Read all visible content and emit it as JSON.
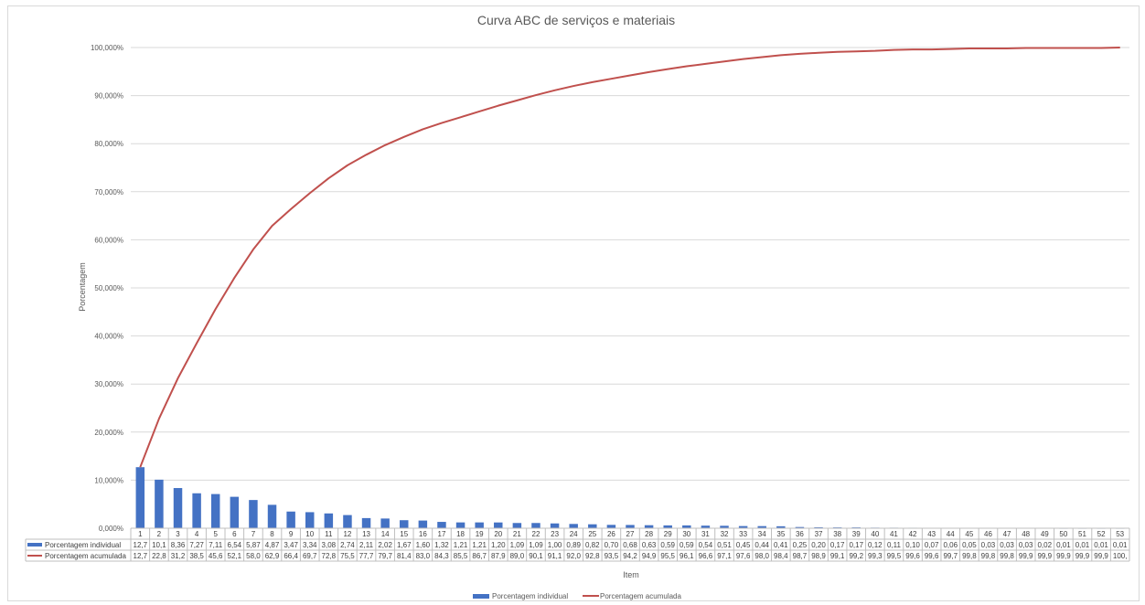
{
  "chart_data": {
    "type": "bar",
    "title": "Curva ABC de serviços e materiais",
    "xlabel": "Item",
    "ylabel": "Porcentagem",
    "ylim": [
      0,
      100
    ],
    "yticks": [
      "0,000%",
      "10,000%",
      "20,000%",
      "30,000%",
      "40,000%",
      "50,000%",
      "60,000%",
      "70,000%",
      "80,000%",
      "90,000%",
      "100,000%"
    ],
    "grid": true,
    "legend_position": "bottom",
    "categories": [
      "1",
      "2",
      "3",
      "4",
      "5",
      "6",
      "7",
      "8",
      "9",
      "10",
      "11",
      "12",
      "13",
      "14",
      "15",
      "16",
      "17",
      "18",
      "19",
      "20",
      "21",
      "22",
      "23",
      "24",
      "25",
      "26",
      "27",
      "28",
      "29",
      "30",
      "31",
      "32",
      "33",
      "34",
      "35",
      "36",
      "37",
      "38",
      "39",
      "40",
      "41",
      "42",
      "43",
      "44",
      "45",
      "46",
      "47",
      "48",
      "49",
      "50",
      "51",
      "52",
      "53"
    ],
    "series": [
      {
        "name": "Porcentagem individual",
        "type": "bar",
        "color": "#4472c4",
        "values": [
          12.7,
          10.1,
          8.36,
          7.27,
          7.11,
          6.54,
          5.87,
          4.87,
          3.47,
          3.34,
          3.08,
          2.74,
          2.11,
          2.02,
          1.67,
          1.6,
          1.32,
          1.21,
          1.21,
          1.2,
          1.09,
          1.09,
          1.0,
          0.89,
          0.82,
          0.7,
          0.68,
          0.63,
          0.59,
          0.59,
          0.54,
          0.51,
          0.45,
          0.44,
          0.41,
          0.25,
          0.2,
          0.17,
          0.17,
          0.12,
          0.11,
          0.1,
          0.07,
          0.06,
          0.05,
          0.03,
          0.03,
          0.03,
          0.02,
          0.01,
          0.01,
          0.01,
          0.01
        ],
        "table_labels": [
          "12,7",
          "10,1",
          "8,36",
          "7,27",
          "7,11",
          "6,54",
          "5,87",
          "4,87",
          "3,47",
          "3,34",
          "3,08",
          "2,74",
          "2,11",
          "2,02",
          "1,67",
          "1,60",
          "1,32",
          "1,21",
          "1,21",
          "1,20",
          "1,09",
          "1,09",
          "1,00",
          "0,89",
          "0,82",
          "0,70",
          "0,68",
          "0,63",
          "0,59",
          "0,59",
          "0,54",
          "0,51",
          "0,45",
          "0,44",
          "0,41",
          "0,25",
          "0,20",
          "0,17",
          "0,17",
          "0,12",
          "0,11",
          "0,10",
          "0,07",
          "0,06",
          "0,05",
          "0,03",
          "0,03",
          "0,03",
          "0,02",
          "0,01",
          "0,01",
          "0,01",
          "0,01"
        ]
      },
      {
        "name": "Porcentagem acumulada",
        "type": "line",
        "color": "#c0504d",
        "values": [
          12.7,
          22.8,
          31.2,
          38.5,
          45.6,
          52.1,
          58.0,
          62.9,
          66.4,
          69.7,
          72.8,
          75.5,
          77.7,
          79.7,
          81.4,
          83.0,
          84.3,
          85.5,
          86.7,
          87.9,
          89.0,
          90.1,
          91.1,
          92.0,
          92.8,
          93.5,
          94.2,
          94.9,
          95.5,
          96.1,
          96.6,
          97.1,
          97.6,
          98.0,
          98.4,
          98.7,
          98.9,
          99.1,
          99.2,
          99.3,
          99.5,
          99.6,
          99.6,
          99.7,
          99.8,
          99.8,
          99.8,
          99.9,
          99.9,
          99.9,
          99.9,
          99.9,
          100
        ],
        "table_labels": [
          "12,7",
          "22,8",
          "31,2",
          "38,5",
          "45,6",
          "52,1",
          "58,0",
          "62,9",
          "66,4",
          "69,7",
          "72,8",
          "75,5",
          "77,7",
          "79,7",
          "81,4",
          "83,0",
          "84,3",
          "85,5",
          "86,7",
          "87,9",
          "89,0",
          "90,1",
          "91,1",
          "92,0",
          "92,8",
          "93,5",
          "94,2",
          "94,9",
          "95,5",
          "96,1",
          "96,6",
          "97,1",
          "97,6",
          "98,0",
          "98,4",
          "98,7",
          "98,9",
          "99,1",
          "99,2",
          "99,3",
          "99,5",
          "99,6",
          "99,6",
          "99,7",
          "99,8",
          "99,8",
          "99,8",
          "99,9",
          "99,9",
          "99,9",
          "99,9",
          "99,9",
          "100,"
        ]
      }
    ]
  }
}
